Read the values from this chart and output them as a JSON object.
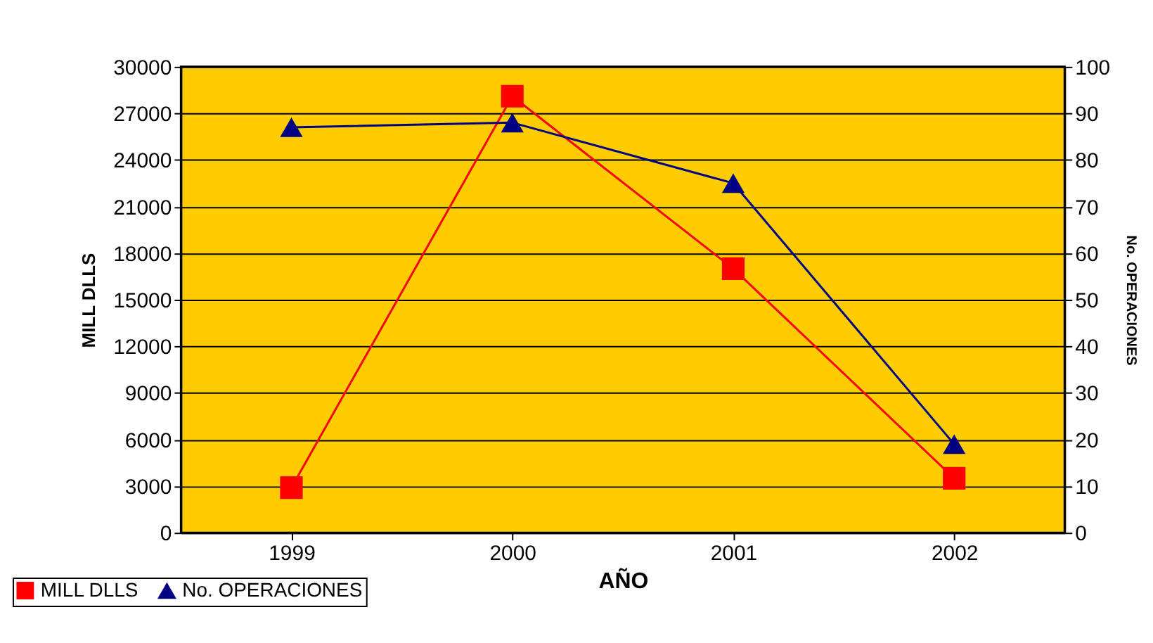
{
  "chart_data": {
    "type": "line",
    "xlabel": "AÑO",
    "ylabel": "MILL DLLS",
    "y2label": "No. OPERACIONES",
    "categories": [
      "1999",
      "2000",
      "2001",
      "2002"
    ],
    "series": [
      {
        "name": "MILL DLLS",
        "color": "#ff0000",
        "marker": "square",
        "values": [
          2900,
          28100,
          17000,
          3500
        ]
      },
      {
        "name": "No. OPERACIONES",
        "color": "#000080",
        "marker": "triangle",
        "axis": "y2",
        "values": [
          87,
          88,
          75,
          19
        ]
      }
    ],
    "ylim": [
      0,
      30000
    ],
    "yticks": [
      0,
      3000,
      6000,
      9000,
      12000,
      15000,
      18000,
      21000,
      24000,
      27000,
      30000
    ],
    "y2lim": [
      0,
      100
    ],
    "y2ticks": [
      0,
      10,
      20,
      30,
      40,
      50,
      60,
      70,
      80,
      90,
      100
    ],
    "grid": "y",
    "legend": "bottom left",
    "line_style": "solid"
  }
}
